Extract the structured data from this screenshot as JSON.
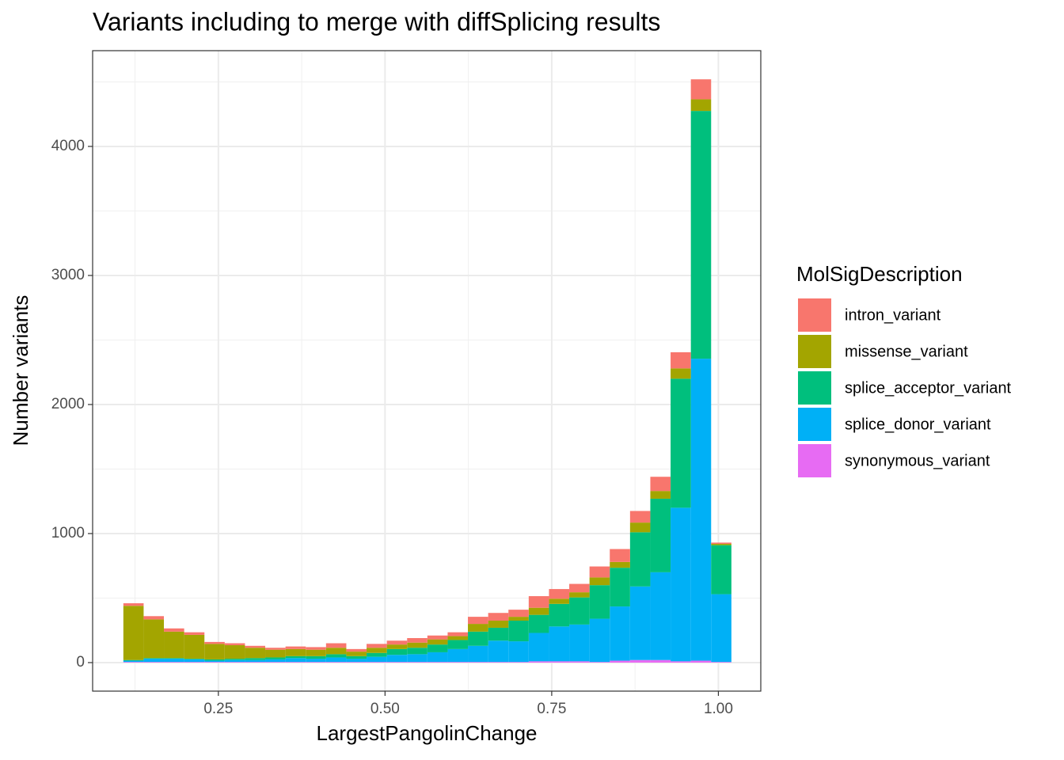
{
  "chart_data": {
    "type": "histogram",
    "title": "Variants including to merge with diffSplicing results",
    "xlabel": "LargestPangolinChange",
    "ylabel": "Number variants",
    "legend_title": "MolSigDescription",
    "legend": "right",
    "grid": true,
    "stacked": true,
    "bins": [
      0.1075,
      0.1379,
      0.1683,
      0.1987,
      0.2291,
      0.2595,
      0.2899,
      0.3203,
      0.3507,
      0.3811,
      0.4115,
      0.4419,
      0.4723,
      0.5027,
      0.5331,
      0.5635,
      0.5939,
      0.6243,
      0.6547,
      0.6851,
      0.7155,
      0.7459,
      0.7763,
      0.8067,
      0.8371,
      0.8675,
      0.8979,
      0.9283,
      0.9587,
      0.9891,
      1.0195
    ],
    "series": [
      {
        "name": "intron_variant",
        "color": "#F8766D",
        "values": [
          20,
          25,
          25,
          20,
          15,
          15,
          15,
          15,
          20,
          20,
          35,
          20,
          30,
          30,
          35,
          30,
          30,
          55,
          60,
          55,
          90,
          75,
          65,
          85,
          100,
          90,
          110,
          125,
          155,
          10
        ]
      },
      {
        "name": "missense_variant",
        "color": "#A3A500",
        "values": [
          420,
          300,
          205,
          185,
          120,
          105,
          80,
          60,
          55,
          50,
          50,
          35,
          40,
          35,
          40,
          40,
          30,
          60,
          55,
          30,
          55,
          40,
          40,
          60,
          45,
          75,
          60,
          80,
          90,
          10
        ]
      },
      {
        "name": "splice_acceptor_variant",
        "color": "#00BF7D",
        "values": [
          5,
          5,
          5,
          5,
          10,
          10,
          15,
          15,
          15,
          20,
          25,
          20,
          30,
          45,
          50,
          60,
          70,
          110,
          100,
          160,
          140,
          175,
          210,
          260,
          300,
          420,
          570,
          1000,
          1920,
          380
        ]
      },
      {
        "name": "splice_donor_variant",
        "color": "#00B0F6",
        "values": [
          10,
          25,
          25,
          20,
          10,
          15,
          15,
          20,
          30,
          25,
          35,
          25,
          40,
          55,
          60,
          75,
          100,
          125,
          165,
          160,
          220,
          270,
          285,
          335,
          420,
          570,
          680,
          1190,
          2340,
          525
        ]
      },
      {
        "name": "synonymous_variant",
        "color": "#E76BF3",
        "values": [
          5,
          5,
          5,
          5,
          5,
          5,
          5,
          5,
          5,
          5,
          5,
          5,
          5,
          5,
          5,
          5,
          5,
          5,
          5,
          5,
          10,
          10,
          10,
          5,
          15,
          20,
          20,
          10,
          15,
          5
        ]
      }
    ],
    "xlim": [
      0.0614,
      1.0636
    ],
    "xticks": [
      0.25,
      {
        "value": 0.5,
        "label": "0.50"
      },
      0.75,
      {
        "value": 1.0,
        "label": "1.00"
      }
    ],
    "ylim": [
      -221,
      4742
    ],
    "yticks": [
      0,
      1000,
      2000,
      3000,
      4000
    ]
  }
}
